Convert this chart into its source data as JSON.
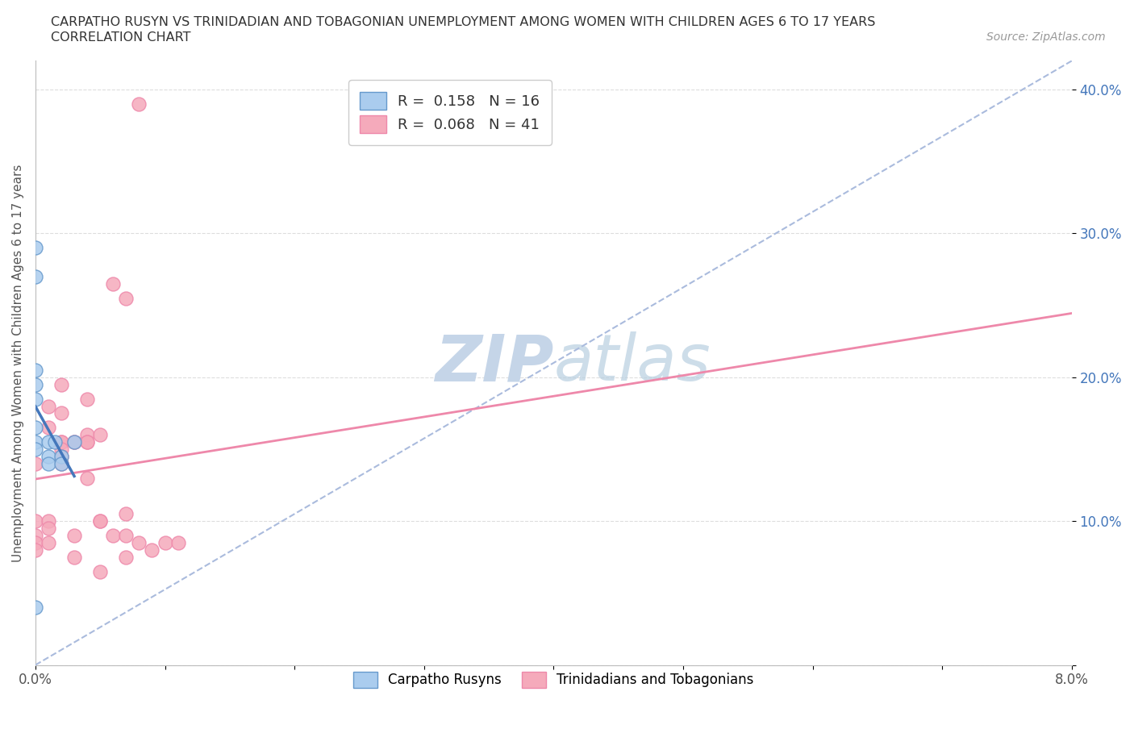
{
  "title_line1": "CARPATHO RUSYN VS TRINIDADIAN AND TOBAGONIAN UNEMPLOYMENT AMONG WOMEN WITH CHILDREN AGES 6 TO 17 YEARS",
  "title_line2": "CORRELATION CHART",
  "source_text": "Source: ZipAtlas.com",
  "ylabel": "Unemployment Among Women with Children Ages 6 to 17 years",
  "xlim": [
    0.0,
    0.08
  ],
  "ylim": [
    0.0,
    0.42
  ],
  "xticks": [
    0.0,
    0.01,
    0.02,
    0.03,
    0.04,
    0.05,
    0.06,
    0.07,
    0.08
  ],
  "xticklabels": [
    "0.0%",
    "",
    "",
    "",
    "",
    "",
    "",
    "",
    "8.0%"
  ],
  "yticks": [
    0.0,
    0.1,
    0.2,
    0.3,
    0.4
  ],
  "yticklabels": [
    "",
    "10.0%",
    "20.0%",
    "30.0%",
    "40.0%"
  ],
  "blue_R": 0.158,
  "blue_N": 16,
  "pink_R": 0.068,
  "pink_N": 41,
  "blue_color": "#aaccee",
  "pink_color": "#f5aabb",
  "blue_edge_color": "#6699cc",
  "pink_edge_color": "#ee88aa",
  "blue_line_color": "#4477bb",
  "pink_line_color": "#ee88aa",
  "dashed_line_color": "#aabbdd",
  "watermark_color": "#cdd8e8",
  "blue_scatter": [
    [
      0.0,
      0.29
    ],
    [
      0.0,
      0.27
    ],
    [
      0.0,
      0.205
    ],
    [
      0.0,
      0.195
    ],
    [
      0.0,
      0.185
    ],
    [
      0.0,
      0.165
    ],
    [
      0.0,
      0.155
    ],
    [
      0.0,
      0.15
    ],
    [
      0.001,
      0.155
    ],
    [
      0.001,
      0.145
    ],
    [
      0.001,
      0.14
    ],
    [
      0.0015,
      0.155
    ],
    [
      0.002,
      0.145
    ],
    [
      0.002,
      0.14
    ],
    [
      0.003,
      0.155
    ],
    [
      0.0,
      0.04
    ]
  ],
  "pink_scatter": [
    [
      0.0,
      0.14
    ],
    [
      0.0,
      0.1
    ],
    [
      0.0,
      0.09
    ],
    [
      0.0,
      0.085
    ],
    [
      0.0,
      0.08
    ],
    [
      0.001,
      0.18
    ],
    [
      0.001,
      0.165
    ],
    [
      0.001,
      0.1
    ],
    [
      0.001,
      0.095
    ],
    [
      0.001,
      0.085
    ],
    [
      0.002,
      0.195
    ],
    [
      0.002,
      0.175
    ],
    [
      0.002,
      0.155
    ],
    [
      0.002,
      0.155
    ],
    [
      0.002,
      0.15
    ],
    [
      0.002,
      0.145
    ],
    [
      0.002,
      0.14
    ],
    [
      0.003,
      0.155
    ],
    [
      0.003,
      0.155
    ],
    [
      0.003,
      0.09
    ],
    [
      0.003,
      0.075
    ],
    [
      0.004,
      0.185
    ],
    [
      0.004,
      0.16
    ],
    [
      0.004,
      0.155
    ],
    [
      0.004,
      0.155
    ],
    [
      0.004,
      0.13
    ],
    [
      0.005,
      0.16
    ],
    [
      0.005,
      0.1
    ],
    [
      0.005,
      0.1
    ],
    [
      0.005,
      0.065
    ],
    [
      0.006,
      0.265
    ],
    [
      0.006,
      0.09
    ],
    [
      0.007,
      0.255
    ],
    [
      0.007,
      0.105
    ],
    [
      0.007,
      0.09
    ],
    [
      0.007,
      0.075
    ],
    [
      0.008,
      0.39
    ],
    [
      0.008,
      0.085
    ],
    [
      0.009,
      0.08
    ],
    [
      0.01,
      0.085
    ],
    [
      0.011,
      0.085
    ]
  ],
  "legend_label_blue": "Carpatho Rusyns",
  "legend_label_pink": "Trinidadians and Tobagonians"
}
